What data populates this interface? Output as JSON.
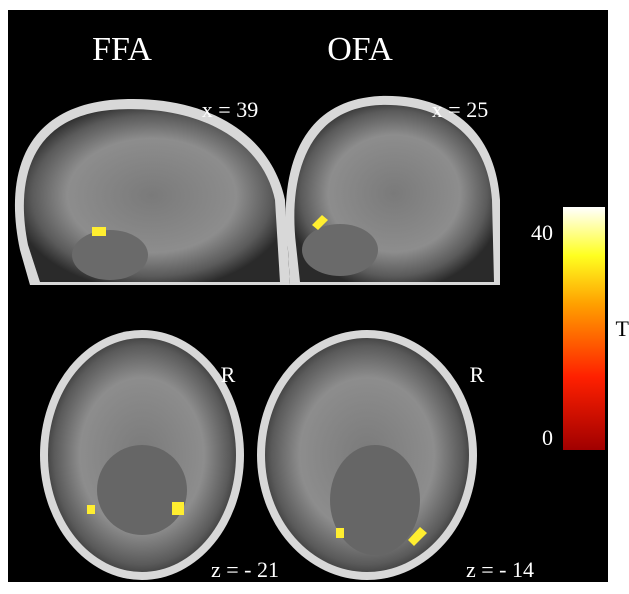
{
  "panels": {
    "columns": [
      "FFA",
      "OFA"
    ],
    "sagittal": [
      "x = 39",
      "x = 25"
    ],
    "axial_orientation": [
      "R",
      "R"
    ],
    "axial": [
      "z = - 21",
      "z = - 14"
    ]
  },
  "colorbar": {
    "label": "T",
    "ticks": [
      0,
      40
    ]
  }
}
